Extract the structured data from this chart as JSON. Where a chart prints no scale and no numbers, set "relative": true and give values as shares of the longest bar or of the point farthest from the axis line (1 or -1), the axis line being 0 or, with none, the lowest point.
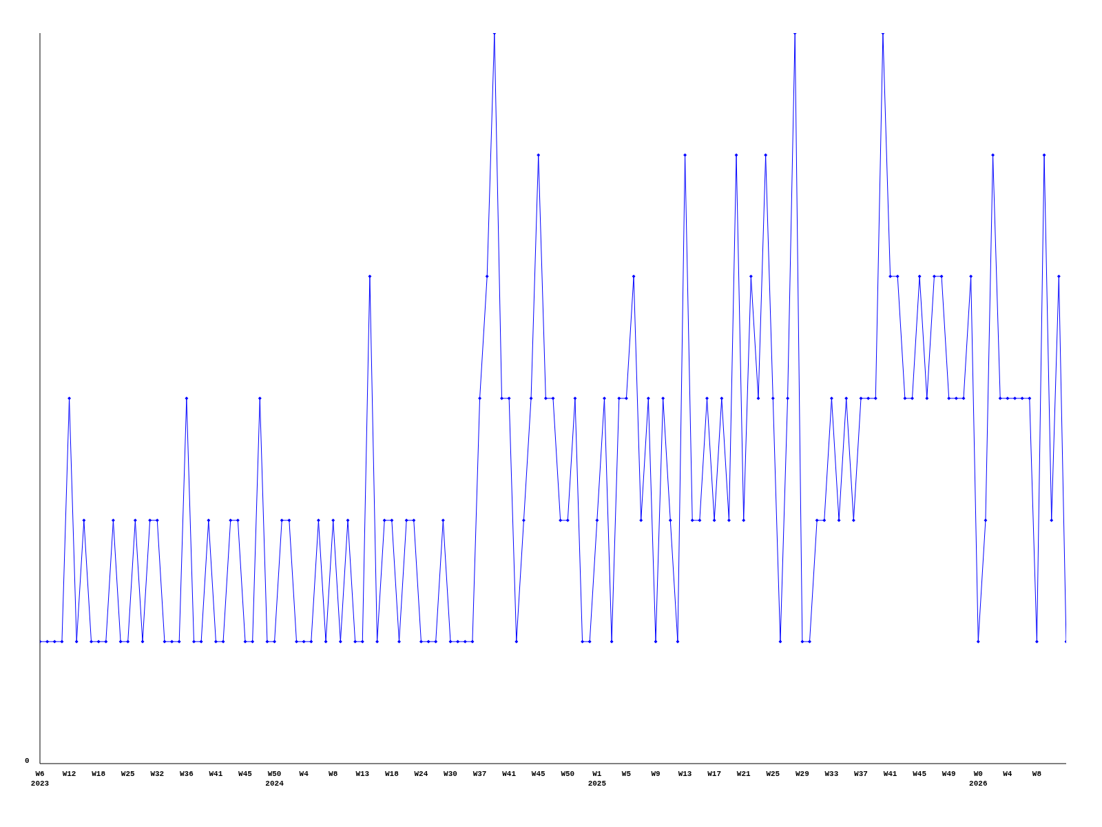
{
  "chart_data": {
    "type": "line",
    "relative": true,
    "annotations": [
      "0"
    ],
    "categories": [
      "W6\n2023",
      null,
      null,
      null,
      "W12",
      null,
      null,
      null,
      "W18",
      null,
      null,
      null,
      "W25",
      null,
      null,
      null,
      "W32",
      null,
      null,
      null,
      "W36",
      null,
      null,
      null,
      "W41",
      null,
      null,
      null,
      "W45",
      null,
      null,
      null,
      "W50\n2024",
      null,
      null,
      null,
      "W4",
      null,
      null,
      null,
      "W8",
      null,
      null,
      null,
      "W13",
      null,
      null,
      null,
      "W18",
      null,
      null,
      null,
      "W24",
      null,
      null,
      null,
      "W30",
      null,
      null,
      null,
      "W37",
      null,
      null,
      null,
      "W41",
      null,
      null,
      null,
      "W45",
      null,
      null,
      null,
      "W50",
      null,
      null,
      null,
      "W1\n2025",
      null,
      null,
      null,
      "W5",
      null,
      null,
      null,
      "W9",
      null,
      null,
      null,
      "W13",
      null,
      null,
      null,
      "W17",
      null,
      null,
      null,
      "W21",
      null,
      null,
      null,
      "W25",
      null,
      null,
      null,
      "W29",
      null,
      null,
      null,
      "W33",
      null,
      null,
      null,
      "W37",
      null,
      null,
      null,
      "W41",
      null,
      null,
      null,
      "W45",
      null,
      null,
      null,
      "W49",
      null,
      null,
      null,
      "W0\n2026",
      null,
      null,
      null,
      "W4",
      null,
      null,
      null,
      "W8",
      null,
      null,
      null,
      null
    ],
    "series": [
      {
        "color": "#0000ff",
        "values": [
          0.167,
          0.167,
          0.167,
          0.167,
          0.5,
          0.167,
          0.333,
          0.167,
          0.167,
          0.167,
          0.333,
          0.167,
          0.167,
          0.333,
          0.167,
          0.333,
          0.333,
          0.167,
          0.167,
          0.167,
          0.5,
          0.167,
          0.167,
          0.333,
          0.167,
          0.167,
          0.333,
          0.333,
          0.167,
          0.167,
          0.5,
          0.167,
          0.167,
          0.333,
          0.333,
          0.167,
          0.167,
          0.167,
          0.333,
          0.167,
          0.333,
          0.167,
          0.333,
          0.167,
          0.167,
          0.667,
          0.167,
          0.333,
          0.333,
          0.167,
          0.333,
          0.333,
          0.167,
          0.167,
          0.167,
          0.333,
          0.167,
          0.167,
          0.167,
          0.167,
          0.5,
          0.667,
          1,
          0.5,
          0.5,
          0.167,
          0.333,
          0.5,
          0.833,
          0.5,
          0.5,
          0.333,
          0.333,
          0.5,
          0.167,
          0.167,
          0.333,
          0.5,
          0.167,
          0.5,
          0.5,
          0.667,
          0.333,
          0.5,
          0.167,
          0.5,
          0.333,
          0.167,
          0.833,
          0.333,
          0.333,
          0.5,
          0.333,
          0.5,
          0.333,
          0.833,
          0.333,
          0.667,
          0.5,
          0.833,
          0.5,
          0.167,
          0.5,
          1,
          0.167,
          0.167,
          0.333,
          0.333,
          0.5,
          0.333,
          0.5,
          0.333,
          0.5,
          0.5,
          0.5,
          1,
          0.667,
          0.667,
          0.5,
          0.5,
          0.667,
          0.5,
          0.667,
          0.667,
          0.5,
          0.5,
          0.5,
          0.667,
          0.167,
          0.333,
          0.833,
          0.5,
          0.5,
          0.5,
          0.5,
          0.5,
          0.167,
          0.833,
          0.333,
          0.667,
          0.167
        ]
      }
    ],
    "marker": "diamond",
    "line_style": "solid",
    "grid": false,
    "legend": false
  }
}
